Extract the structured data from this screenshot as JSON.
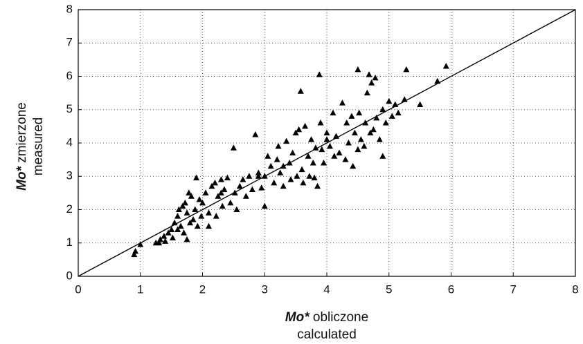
{
  "chart_data": {
    "type": "scatter",
    "xlabel": {
      "symbol": "Mo*",
      "text": "obliczone",
      "line2": "calculated"
    },
    "ylabel": {
      "symbol": "Mo*",
      "text": "zmierzone",
      "line2": "measured"
    },
    "xlim": [
      0,
      8
    ],
    "ylim": [
      0,
      8
    ],
    "xticks": [
      0,
      1,
      2,
      3,
      4,
      5,
      6,
      7,
      8
    ],
    "yticks": [
      0,
      1,
      2,
      3,
      4,
      5,
      6,
      7,
      8
    ],
    "grid": true,
    "color": "#000000",
    "reference_line": {
      "x": [
        0,
        8
      ],
      "y": [
        0,
        8
      ]
    },
    "x": [
      0.9,
      0.92,
      1.0,
      1.25,
      1.3,
      1.32,
      1.38,
      1.4,
      1.45,
      1.5,
      1.52,
      1.55,
      1.6,
      1.62,
      1.65,
      1.68,
      1.7,
      1.72,
      1.75,
      1.78,
      1.8,
      1.82,
      1.85,
      1.88,
      1.9,
      1.92,
      1.95,
      1.98,
      2.0,
      2.05,
      2.1,
      2.15,
      2.2,
      2.22,
      2.25,
      2.3,
      2.32,
      2.35,
      2.4,
      2.45,
      2.5,
      2.52,
      2.55,
      2.6,
      2.65,
      2.7,
      2.75,
      2.8,
      2.85,
      2.9,
      2.95,
      3.0,
      3.05,
      3.1,
      3.15,
      3.2,
      3.22,
      3.25,
      3.3,
      3.35,
      3.4,
      3.42,
      3.45,
      3.5,
      3.52,
      3.55,
      3.58,
      3.6,
      3.62,
      3.65,
      3.7,
      3.72,
      3.75,
      3.78,
      3.8,
      3.82,
      3.85,
      3.88,
      3.9,
      3.92,
      3.95,
      4.0,
      4.05,
      4.1,
      4.12,
      4.15,
      4.2,
      4.25,
      4.3,
      4.32,
      4.35,
      4.4,
      4.42,
      4.45,
      4.5,
      4.52,
      4.55,
      4.6,
      4.62,
      4.65,
      4.68,
      4.7,
      4.72,
      4.75,
      4.78,
      4.8,
      4.85,
      4.9,
      4.95,
      5.0,
      5.05,
      5.1,
      5.15,
      5.25,
      5.28,
      5.5,
      5.78,
      5.92,
      4.9,
      4.5,
      3.0,
      2.1,
      1.75,
      2.9,
      3.3,
      4.0,
      2.3,
      1.6
    ],
    "y": [
      0.65,
      0.75,
      0.95,
      1.0,
      1.0,
      1.1,
      1.2,
      1.05,
      1.3,
      1.4,
      1.15,
      1.6,
      1.8,
      2.0,
      1.5,
      2.1,
      1.3,
      2.2,
      1.9,
      2.5,
      1.6,
      2.4,
      1.7,
      2.0,
      2.95,
      1.5,
      2.3,
      1.8,
      2.2,
      2.5,
      1.9,
      2.7,
      2.8,
      1.8,
      2.4,
      2.9,
      2.1,
      2.6,
      2.95,
      2.2,
      3.85,
      2.5,
      2.0,
      2.7,
      2.9,
      2.4,
      3.0,
      2.6,
      4.25,
      3.1,
      2.65,
      3.0,
      3.6,
      3.3,
      2.8,
      3.5,
      3.9,
      3.1,
      2.7,
      4.05,
      3.4,
      2.9,
      3.7,
      4.3,
      3.0,
      4.4,
      5.55,
      3.2,
      2.8,
      4.5,
      3.6,
      3.0,
      4.1,
      3.4,
      2.95,
      3.85,
      2.7,
      6.05,
      4.6,
      3.8,
      3.4,
      4.1,
      3.9,
      4.9,
      3.6,
      4.2,
      3.7,
      5.2,
      3.5,
      4.6,
      4.0,
      4.8,
      3.3,
      4.3,
      6.2,
      4.9,
      4.1,
      3.9,
      4.6,
      5.5,
      6.05,
      4.3,
      5.8,
      4.4,
      5.95,
      4.75,
      4.1,
      5.0,
      4.6,
      5.25,
      4.8,
      5.15,
      4.9,
      5.3,
      6.2,
      5.15,
      5.85,
      6.3,
      3.6,
      3.8,
      2.1,
      1.5,
      1.1,
      3.0,
      3.3,
      4.3,
      2.5,
      1.4
    ]
  }
}
